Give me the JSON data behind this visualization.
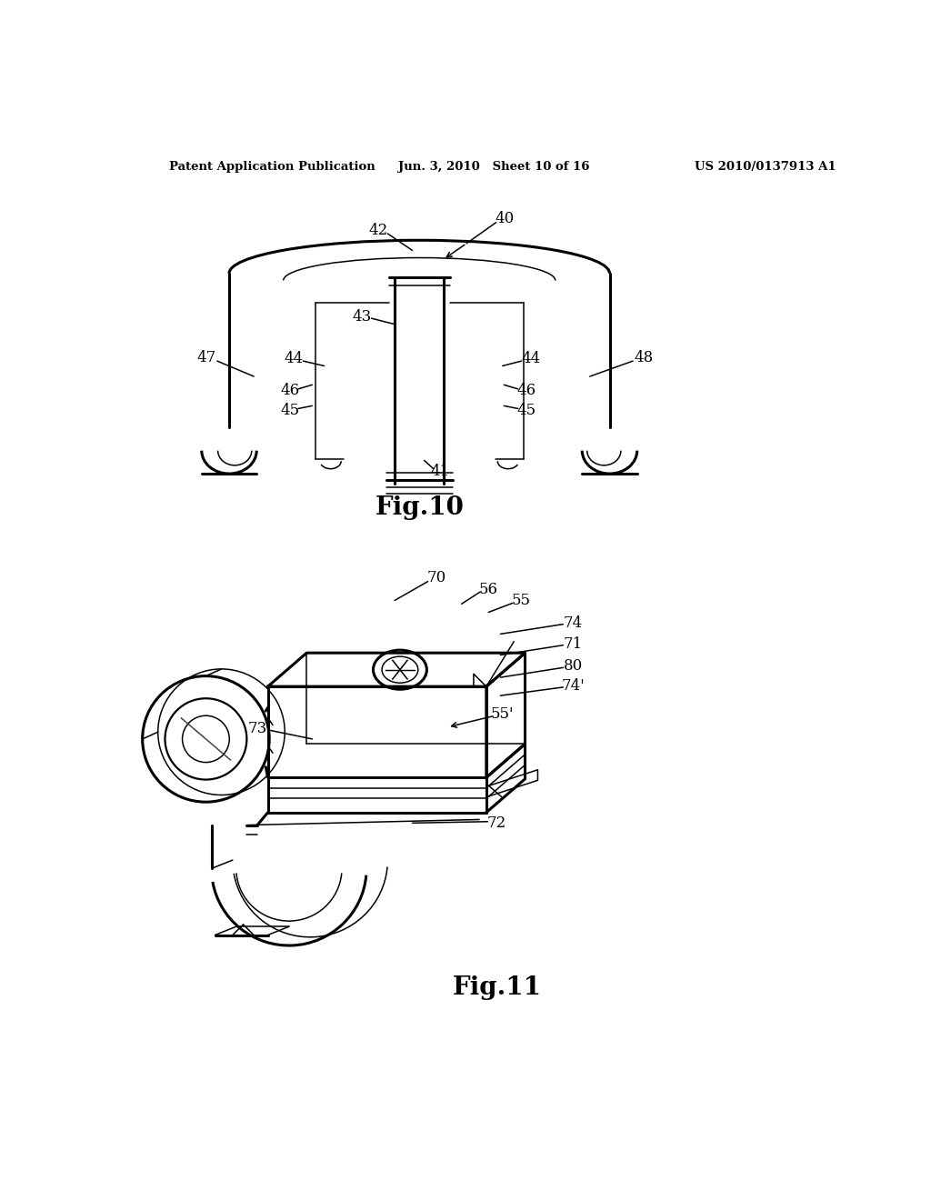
{
  "bg_color": "#ffffff",
  "line_color": "#000000",
  "header_left": "Patent Application Publication",
  "header_mid": "Jun. 3, 2010   Sheet 10 of 16",
  "header_right": "US 2010/0137913 A1",
  "fig10_label": "Fig.10",
  "fig11_label": "Fig.11"
}
